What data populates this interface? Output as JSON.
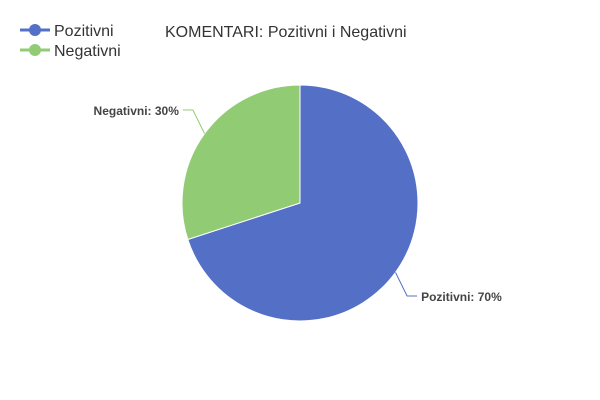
{
  "chart_data": {
    "type": "pie",
    "title": "KOMENTARI: Pozitivni i Negativni",
    "legend_position": "top-left",
    "slices": [
      {
        "name": "Pozitivni",
        "value": 70,
        "label": "Pozitivni: 70%",
        "color": "#5470c6"
      },
      {
        "name": "Negativni",
        "value": 30,
        "label": "Negativni: 30%",
        "color": "#91cc75"
      }
    ]
  }
}
